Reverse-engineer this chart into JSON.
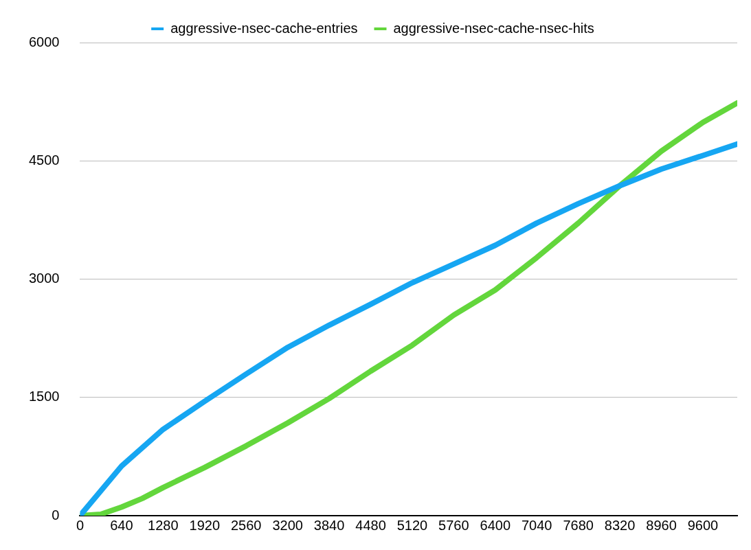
{
  "chart_data": {
    "type": "line",
    "xlim": [
      0,
      10130
    ],
    "xticks": [
      0,
      640,
      1280,
      1920,
      2560,
      3200,
      3840,
      4480,
      5120,
      5760,
      6400,
      7040,
      7680,
      8320,
      8960,
      9600
    ],
    "ylim": [
      0,
      6000
    ],
    "yticks": [
      0,
      1500,
      3000,
      4500,
      6000
    ],
    "grid": "y",
    "legend": "top",
    "marker": "none",
    "line_style": "solid",
    "series": [
      {
        "name": "aggressive-nsec-cache-entries",
        "color": "#16a6f2",
        "x": [
          0,
          640,
          1280,
          1920,
          2560,
          3200,
          3840,
          4480,
          5120,
          5760,
          6400,
          7040,
          7680,
          8320,
          8960,
          9600,
          10130
        ],
        "values": [
          0,
          629,
          1094,
          1450,
          1796,
          2134,
          2416,
          2681,
          2954,
          3191,
          3429,
          3711,
          3957,
          4185,
          4395,
          4568,
          4714
        ]
      },
      {
        "name": "aggressive-nsec-cache-nsec-hits",
        "color": "#63d63c",
        "x": [
          0,
          320,
          640,
          960,
          1280,
          1920,
          2560,
          3200,
          3840,
          4480,
          5120,
          5760,
          6400,
          7040,
          7680,
          8320,
          8960,
          9600,
          10130
        ],
        "values": [
          0,
          18,
          109,
          219,
          356,
          611,
          885,
          1176,
          1486,
          1833,
          2161,
          2544,
          2863,
          3274,
          3711,
          4185,
          4623,
          4988,
          5234
        ]
      }
    ]
  }
}
